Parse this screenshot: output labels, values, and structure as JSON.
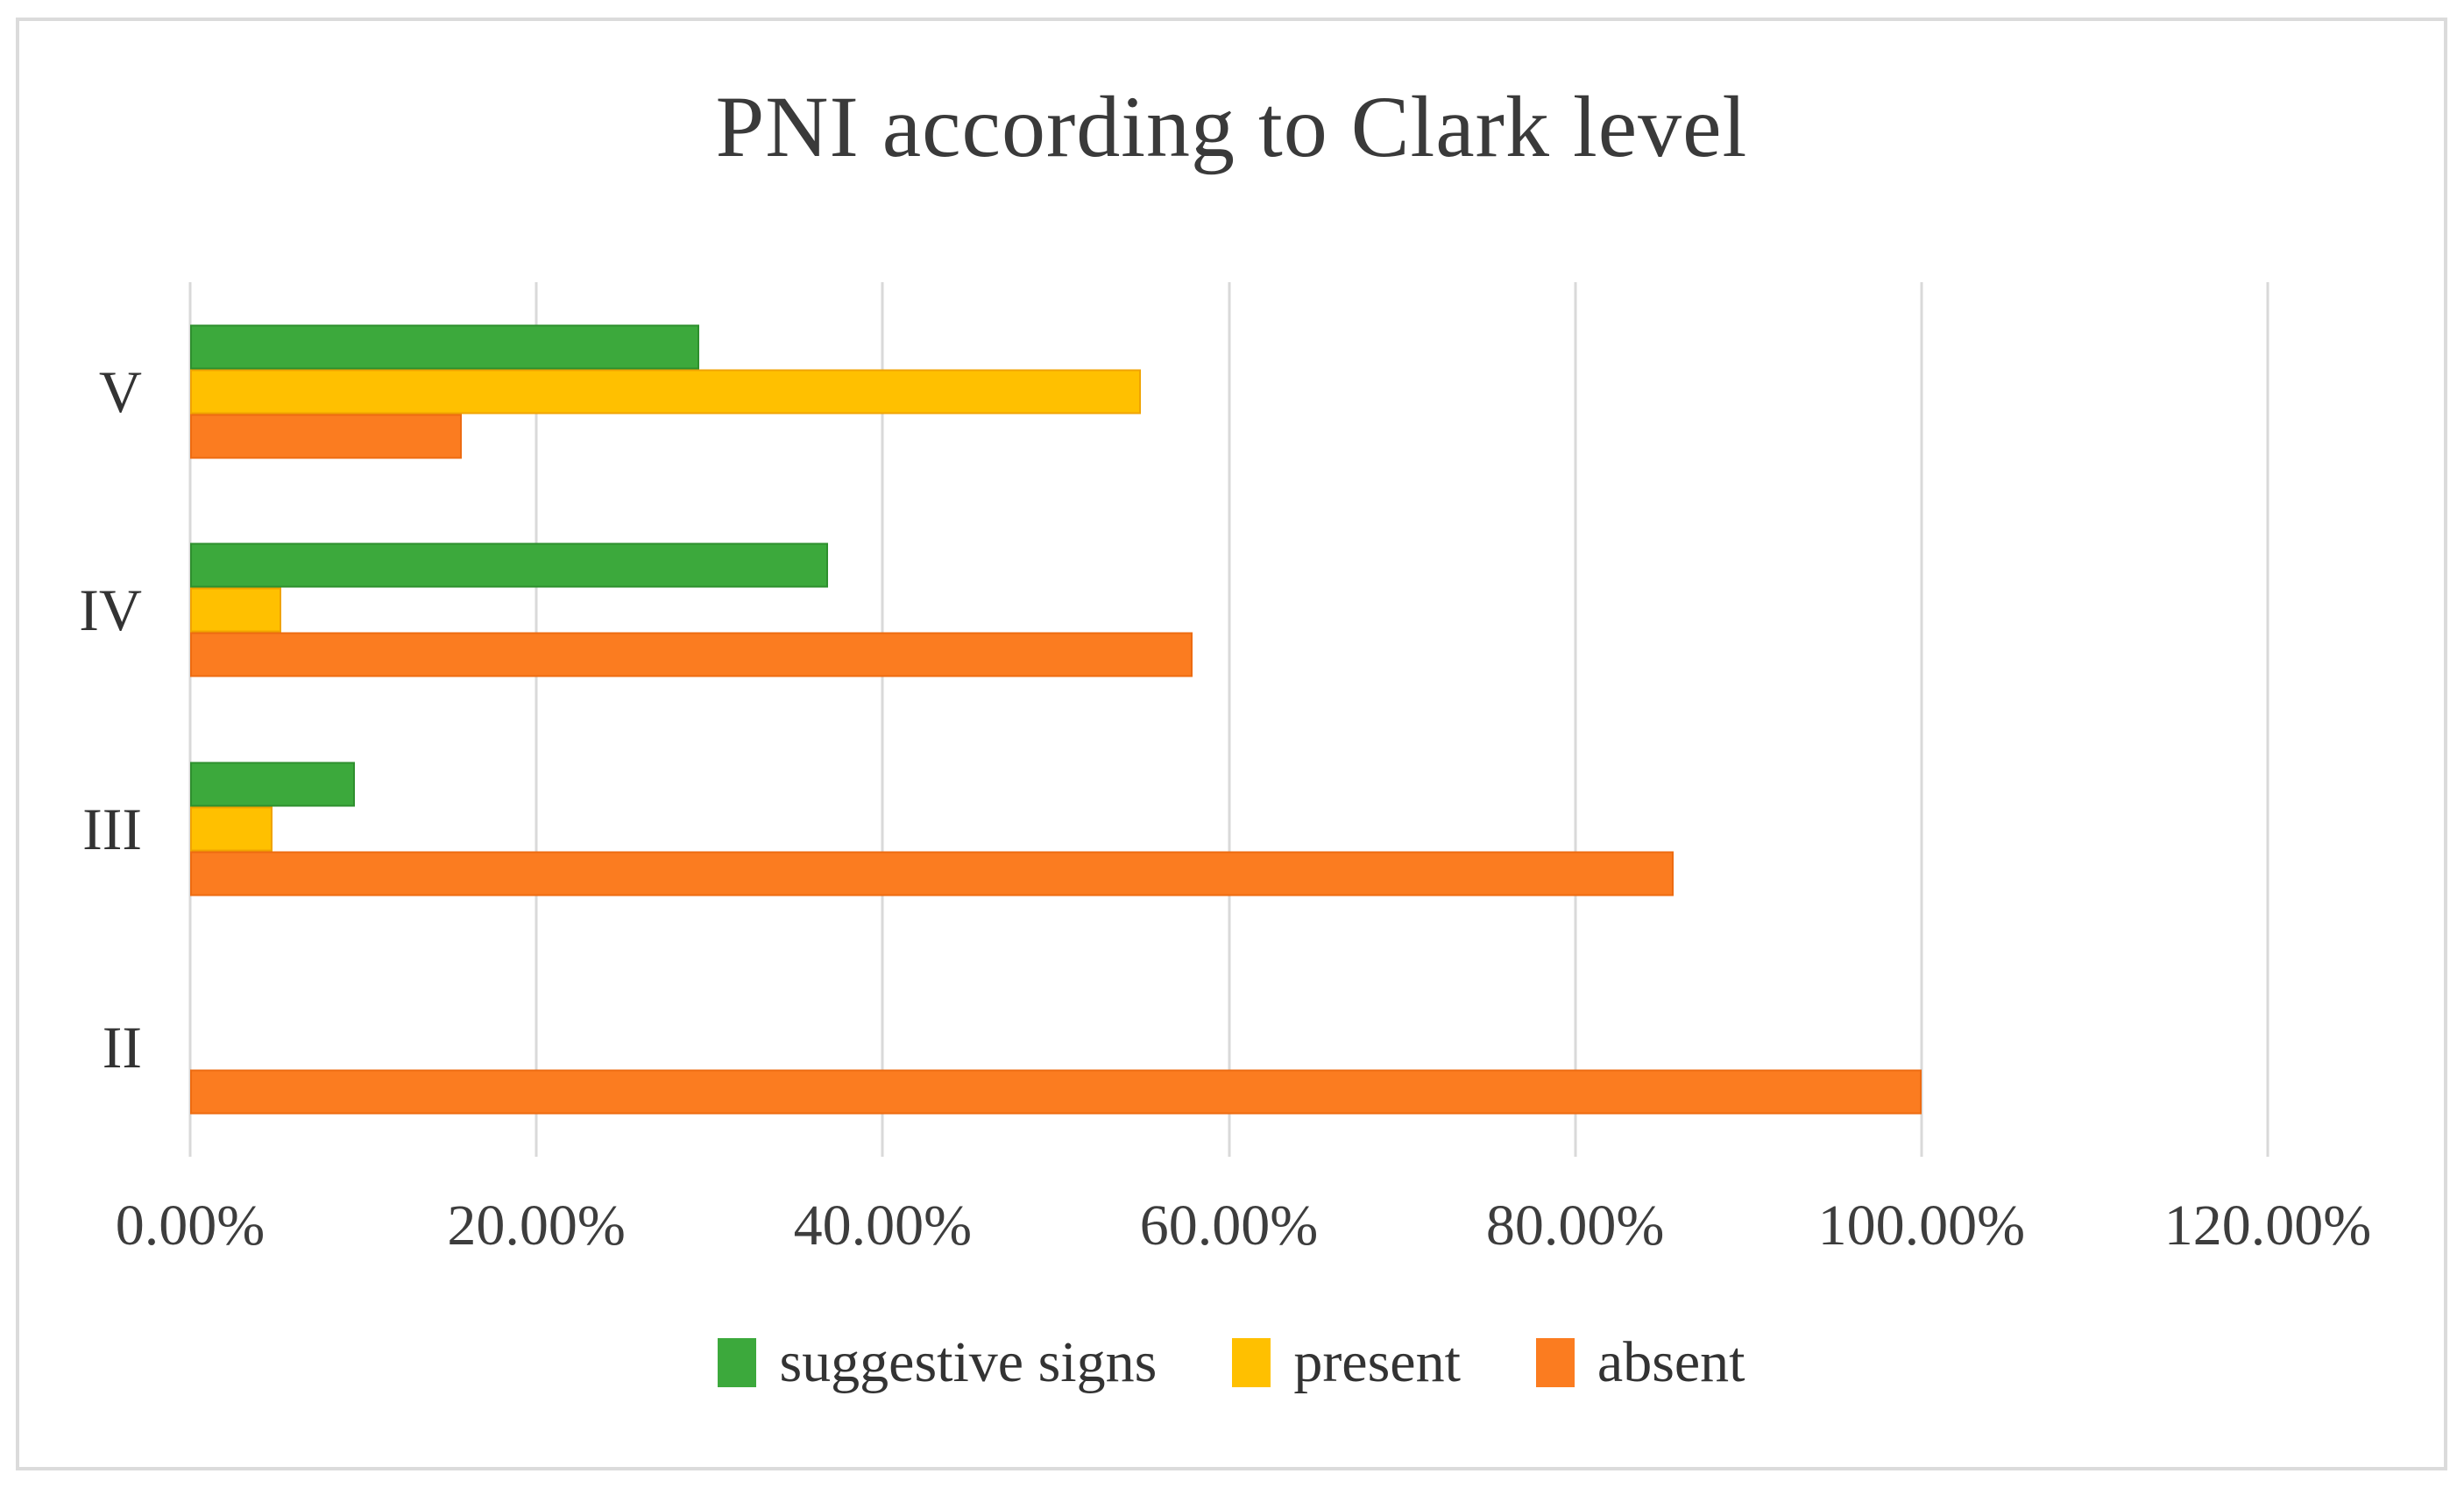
{
  "figure": {
    "background": "#ffffff",
    "border_color": "#DBDBDB",
    "text_color": "#3a3a3a",
    "gridline_color": "#D9D9D9"
  },
  "chart_data": {
    "type": "bar",
    "orientation": "horizontal",
    "title": "PNI according to Clark level",
    "categories": [
      "V",
      "IV",
      "III",
      "II"
    ],
    "series": [
      {
        "name": "suggestive signs",
        "color": "#3CA93C",
        "edge": "#2E8F2E",
        "values": [
          29.41,
          36.84,
          9.52,
          0
        ]
      },
      {
        "name": "present",
        "color": "#FFC000",
        "edge": "#F0A300",
        "values": [
          54.9,
          5.26,
          4.76,
          0
        ]
      },
      {
        "name": "absent",
        "color": "#FB7C20",
        "edge": "#ED6B11",
        "values": [
          15.69,
          57.89,
          85.71,
          100
        ]
      }
    ],
    "x_axis": {
      "min": 0,
      "max": 120,
      "tick_step": 20,
      "tick_values": [
        0,
        20,
        40,
        60,
        80,
        100,
        120
      ],
      "tick_labels": [
        "0.00%",
        "20.00%",
        "40.00%",
        "60.00%",
        "80.00%",
        "100.00%",
        "120.00%"
      ]
    },
    "grid": true,
    "legend_position": "bottom",
    "legend_labels": [
      "suggestive signs",
      "present",
      "absent"
    ]
  }
}
